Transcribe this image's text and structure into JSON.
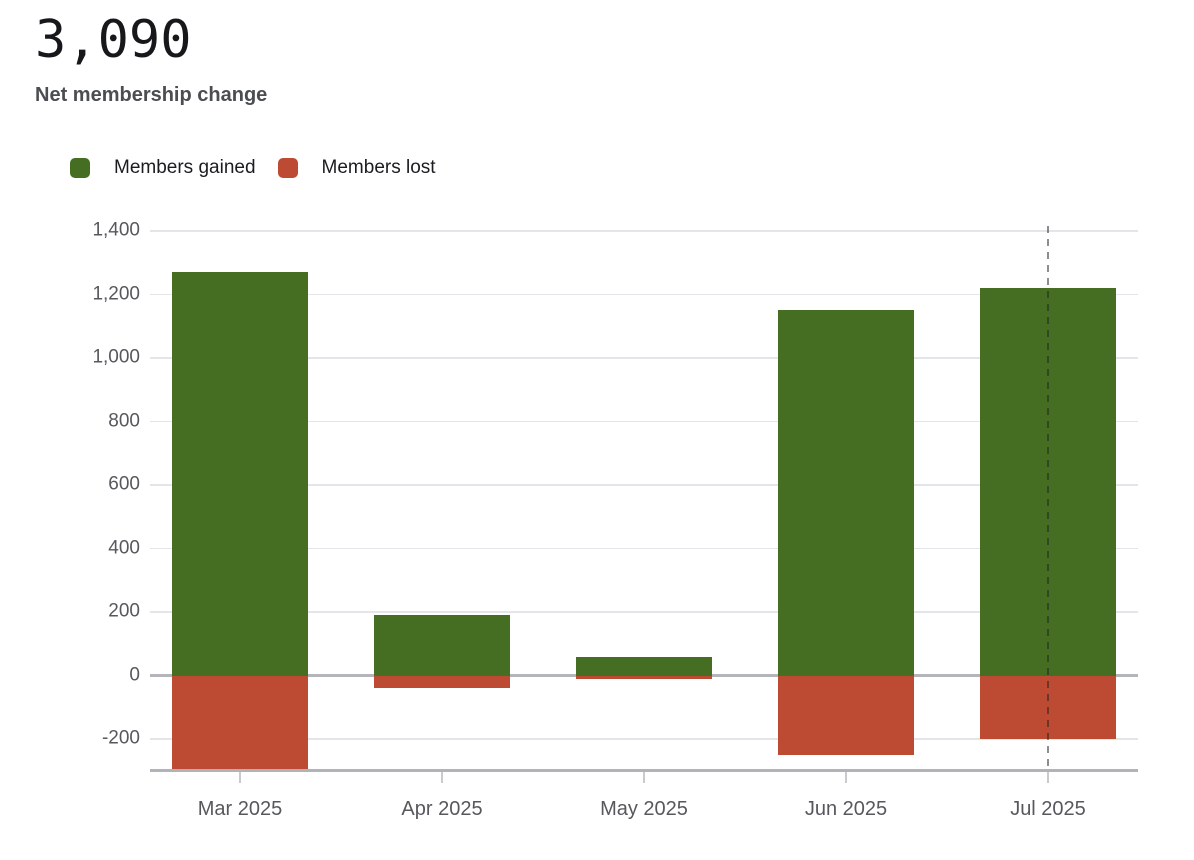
{
  "header": {
    "big_number": "3,090",
    "subtitle": "Net membership change"
  },
  "chart_data": {
    "type": "bar",
    "variant": "diverging-stacked",
    "categories": [
      "Mar 2025",
      "Apr 2025",
      "May 2025",
      "Jun 2025",
      "Jul 2025"
    ],
    "series": [
      {
        "name": "Members gained",
        "color": "#456e23",
        "values": [
          1270,
          190,
          60,
          1150,
          1220
        ]
      },
      {
        "name": "Members lost",
        "color": "#bd4a33",
        "values": [
          -300,
          -40,
          -10,
          -250,
          -200
        ]
      }
    ],
    "net_total": 3090,
    "title": "3,090",
    "subtitle": "Net membership change",
    "xlabel": "",
    "ylabel": "",
    "ylim": [
      -300,
      1400
    ],
    "yticks": [
      1400,
      1200,
      1000,
      800,
      600,
      400,
      200,
      0,
      -200
    ],
    "grid": true,
    "legend_position": "top-left",
    "current_period_marker": "Jul 2025",
    "marker_style": "dashed-vertical-line"
  },
  "colors": {
    "background": "#ffffff",
    "gained": "#456e23",
    "lost": "#bd4a33",
    "gridline": "#e3e5e8",
    "zero_line": "#b3b5ba",
    "axis_line": "#b1b3b8",
    "x_tick": "#c8cace",
    "axis_text": "#56585d",
    "legend_text": "#1b1c20",
    "big_number_text": "#18181c",
    "subtitle_text": "#4b4d52",
    "marker_dash": "rgba(30,30,32,0.5)"
  }
}
